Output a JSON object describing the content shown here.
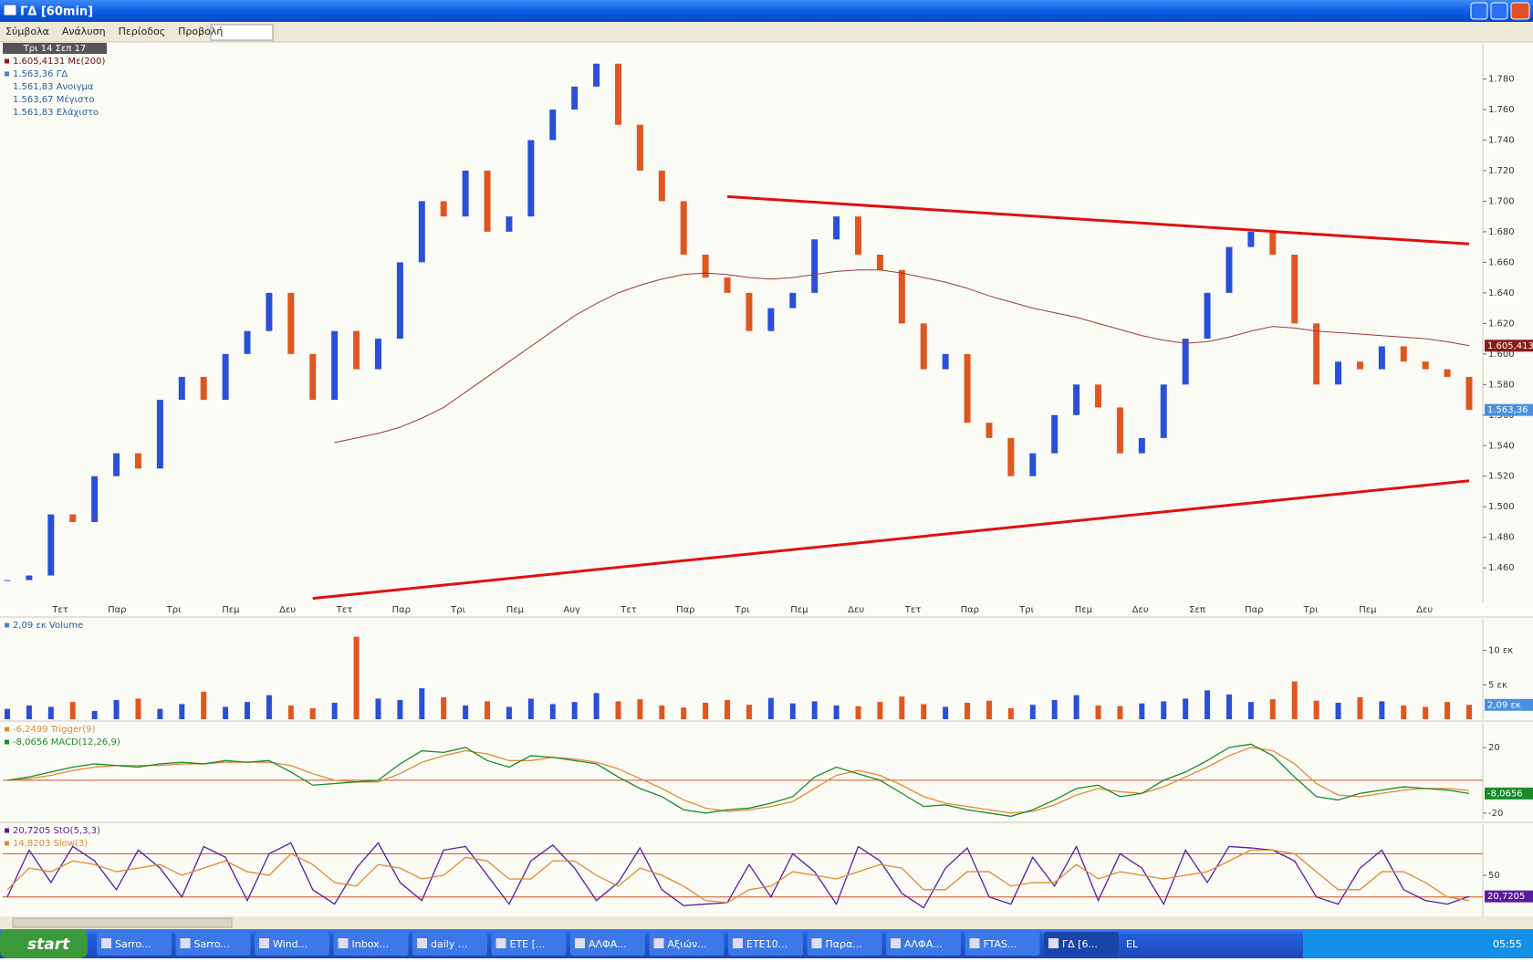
{
  "window": {
    "title": "ΓΔ [60min]"
  },
  "menu": [
    "Σύμβολα",
    "Ανάλυση",
    "Περίοδος",
    "Προβολή"
  ],
  "chart_data": [
    {
      "type": "candlestick",
      "date_label": "Τρι 14 Σεπ 17",
      "legend": [
        {
          "text": "1.605,4131 Με(200)",
          "color": "#8b1a1a"
        },
        {
          "text": "1.563,36 ΓΔ",
          "color": "#4a7fd0"
        },
        {
          "text": "1.561,83 Ανοιγμα"
        },
        {
          "text": "1.563,67 Μέγιστο"
        },
        {
          "text": "1.561,83 Ελάχιστο"
        }
      ],
      "categories": [
        "Τετ",
        "Παρ",
        "Τρι",
        "Πεμ",
        "Δευ",
        "Τετ",
        "Παρ",
        "Τρι",
        "Πεμ",
        "Αυγ",
        "Τετ",
        "Παρ",
        "Τρι",
        "Πεμ",
        "Δευ",
        "Τετ",
        "Παρ",
        "Τρι",
        "Πεμ",
        "Δευ",
        "Σεπ",
        "Παρ",
        "Τρι",
        "Πεμ",
        "Δευ"
      ],
      "close": [
        1452,
        1455,
        1495,
        1490,
        1520,
        1535,
        1525,
        1570,
        1585,
        1570,
        1600,
        1615,
        1640,
        1600,
        1570,
        1615,
        1590,
        1610,
        1660,
        1700,
        1690,
        1720,
        1680,
        1690,
        1740,
        1760,
        1775,
        1790,
        1750,
        1720,
        1700,
        1665,
        1650,
        1640,
        1615,
        1630,
        1640,
        1675,
        1690,
        1665,
        1655,
        1620,
        1590,
        1600,
        1555,
        1545,
        1520,
        1535,
        1560,
        1580,
        1565,
        1535,
        1545,
        1580,
        1610,
        1640,
        1670,
        1680,
        1665,
        1620,
        1580,
        1595,
        1590,
        1605,
        1595,
        1590,
        1585,
        1563.36
      ],
      "ma200": [
        null,
        null,
        null,
        null,
        null,
        null,
        null,
        null,
        null,
        null,
        null,
        null,
        null,
        null,
        null,
        1542,
        1545,
        1548,
        1552,
        1558,
        1565,
        1575,
        1585,
        1595,
        1605,
        1615,
        1625,
        1633,
        1640,
        1645,
        1649,
        1652,
        1653,
        1652,
        1650,
        1649,
        1650,
        1652,
        1654,
        1655,
        1655,
        1653,
        1650,
        1647,
        1643,
        1638,
        1634,
        1630,
        1627,
        1624,
        1620,
        1616,
        1612,
        1609,
        1607,
        1608,
        1611,
        1615,
        1618,
        1617,
        1615,
        1614,
        1613,
        1612,
        1611,
        1610,
        1608,
        1605.4131
      ],
      "up_color": "#2a4fd8",
      "down_color": "#e0561e",
      "ma_color": "#9b3a3a",
      "trendlines": [
        {
          "x": [
            33,
            67
          ],
          "y": [
            1703,
            1672
          ]
        },
        {
          "x": [
            14,
            67
          ],
          "y": [
            1440,
            1517
          ]
        }
      ],
      "trend_color": "#e01010",
      "ylim": [
        1438,
        1803
      ],
      "yticks": [
        {
          "value": 1460,
          "label": "1.460"
        },
        {
          "value": 1480,
          "label": "1.480"
        },
        {
          "value": 1500,
          "label": "1.500"
        },
        {
          "value": 1520,
          "label": "1.520"
        },
        {
          "value": 1540,
          "label": "1.540"
        },
        {
          "value": 1560,
          "label": "1.560"
        },
        {
          "value": 1580,
          "label": "1.580"
        },
        {
          "value": 1600,
          "label": "1.600"
        },
        {
          "value": 1620,
          "label": "1.620"
        },
        {
          "value": 1640,
          "label": "1.640"
        },
        {
          "value": 1660,
          "label": "1.660"
        },
        {
          "value": 1680,
          "label": "1.680"
        },
        {
          "value": 1700,
          "label": "1.700"
        },
        {
          "value": 1720,
          "label": "1.720"
        },
        {
          "value": 1740,
          "label": "1.740"
        },
        {
          "value": 1760,
          "label": "1.760"
        },
        {
          "value": 1780,
          "label": "1.780"
        }
      ],
      "tags": [
        {
          "value": 1605.413,
          "label": "1.605,413",
          "color": "#8b1a1a"
        },
        {
          "value": 1563.36,
          "label": "1.563,36",
          "color": "#4a90e0"
        }
      ]
    },
    {
      "type": "bar",
      "legend": [
        {
          "text": "2,09 εκ Volume",
          "color": "#4a7fd0"
        }
      ],
      "values": [
        1.5,
        2,
        1.8,
        2.5,
        1.2,
        2.8,
        3,
        1.5,
        2.2,
        4,
        1.8,
        2.5,
        3.5,
        2,
        1.6,
        2.4,
        12,
        3,
        2.8,
        4.5,
        3.2,
        2,
        2.6,
        1.8,
        3,
        2.2,
        2.5,
        3.8,
        2.6,
        2.9,
        2,
        1.7,
        2.4,
        2.8,
        2.1,
        3.1,
        2.3,
        2.6,
        2,
        1.9,
        2.5,
        3.3,
        2.2,
        1.8,
        2.4,
        2.7,
        1.6,
        2.1,
        2.8,
        3.5,
        2,
        1.9,
        2.3,
        2.6,
        3,
        4.2,
        3.6,
        2.5,
        2.9,
        5.5,
        2.7,
        2.4,
        3.2,
        2.6,
        2,
        1.8,
        2.5,
        2.09
      ],
      "ylim": [
        0,
        14.6
      ],
      "yticks": [
        {
          "value": 5,
          "label": "5 εκ"
        },
        {
          "value": 10,
          "label": "10 εκ"
        }
      ],
      "tags": [
        {
          "value": 2.09,
          "label": "2,09 εκ",
          "color": "#4a90e0"
        }
      ]
    },
    {
      "type": "line",
      "series": [
        {
          "name": "-6,2499 Trigger(9)",
          "color": "#e08a30",
          "values": [
            0,
            1,
            3,
            6,
            8,
            9,
            9,
            9,
            10,
            10,
            11,
            11,
            11,
            9,
            4,
            0,
            -1,
            -1,
            4,
            11,
            15,
            18,
            16,
            12,
            12,
            14,
            13,
            11,
            7,
            1,
            -5,
            -12,
            -17,
            -19,
            -18,
            -16,
            -13,
            -5,
            3,
            6,
            3,
            -3,
            -10,
            -14,
            -16,
            -18,
            -20,
            -19,
            -15,
            -9,
            -5,
            -7,
            -8,
            -4,
            2,
            8,
            15,
            20,
            18,
            10,
            -2,
            -9,
            -10,
            -8,
            -6,
            -5,
            -5,
            -6.2499
          ]
        },
        {
          "name": "-8,0656 MACD(12,26,9)",
          "color": "#1a8a2a",
          "values": [
            0,
            2,
            5,
            8,
            10,
            9,
            8,
            10,
            11,
            10,
            12,
            11,
            12,
            5,
            -3,
            -2,
            -1,
            0,
            10,
            18,
            17,
            20,
            12,
            8,
            15,
            14,
            12,
            10,
            2,
            -5,
            -10,
            -18,
            -20,
            -18,
            -17,
            -14,
            -10,
            2,
            8,
            4,
            0,
            -8,
            -16,
            -15,
            -18,
            -20,
            -22,
            -18,
            -12,
            -5,
            -3,
            -10,
            -8,
            0,
            5,
            12,
            20,
            22,
            15,
            2,
            -10,
            -12,
            -8,
            -6,
            -4,
            -5,
            -6,
            -8.0656
          ]
        }
      ],
      "levels": [
        0
      ],
      "level_color": "#d05020",
      "ylim": [
        -24,
        35
      ],
      "yticks": [
        20,
        -20
      ],
      "tags": [
        {
          "value": -8.0656,
          "label": "-8,0656",
          "color": "#1a8a2a"
        }
      ]
    },
    {
      "type": "line",
      "series": [
        {
          "name": "20,7205 StO(5,3,3)",
          "color": "#5a1aa0",
          "values": [
            20,
            85,
            40,
            90,
            70,
            30,
            85,
            60,
            20,
            90,
            75,
            15,
            80,
            95,
            30,
            10,
            60,
            95,
            40,
            15,
            85,
            90,
            50,
            10,
            70,
            92,
            60,
            15,
            40,
            88,
            30,
            8,
            10,
            12,
            65,
            20,
            80,
            55,
            10,
            90,
            70,
            25,
            5,
            60,
            88,
            20,
            10,
            75,
            35,
            90,
            15,
            80,
            60,
            10,
            85,
            40,
            90,
            88,
            85,
            70,
            20,
            10,
            60,
            85,
            30,
            15,
            10,
            20.7205
          ]
        },
        {
          "name": "14,8203 Slow(3)",
          "color": "#e08a30",
          "values": [
            30,
            60,
            55,
            70,
            65,
            55,
            60,
            65,
            50,
            60,
            70,
            55,
            50,
            80,
            65,
            40,
            35,
            65,
            60,
            45,
            50,
            75,
            70,
            45,
            45,
            70,
            70,
            50,
            35,
            60,
            50,
            35,
            15,
            12,
            30,
            35,
            55,
            50,
            45,
            55,
            65,
            60,
            30,
            30,
            55,
            55,
            35,
            40,
            40,
            65,
            45,
            55,
            50,
            45,
            50,
            55,
            70,
            85,
            85,
            80,
            55,
            30,
            30,
            55,
            55,
            40,
            20,
            14.8203
          ]
        }
      ],
      "levels": [
        20,
        80
      ],
      "level_color": "#d05020",
      "ylim": [
        -7,
        121
      ],
      "yticks": [
        50
      ],
      "tags": [
        {
          "value": 20.7205,
          "label": "20,7205",
          "color": "#5a1aa0"
        }
      ]
    }
  ],
  "taskbar": {
    "start": "start",
    "items": [
      "Sarro...",
      "Sarro...",
      "Wind...",
      "Inbox...",
      "daily ...",
      "ETE [...",
      "ΑΛΦΑ...",
      "Αξιών...",
      "ETE10...",
      "Παρα...",
      "ΑΛΦΑ...",
      "FTAS...",
      "ΓΔ [6..."
    ],
    "language": "EL",
    "clock": "05:55"
  }
}
